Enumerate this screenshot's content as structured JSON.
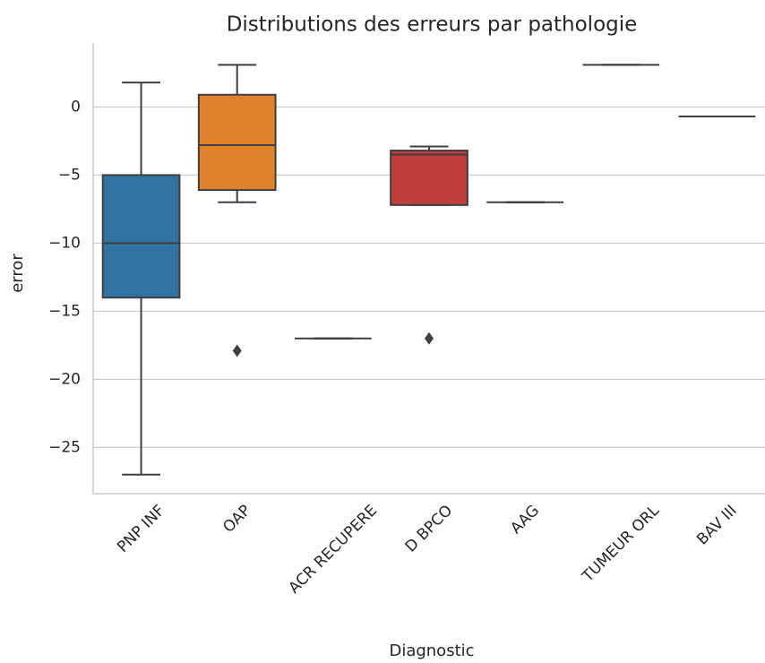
{
  "chart_data": {
    "type": "box",
    "title": "Distributions des erreurs par pathologie",
    "x_label": "Diagnostic",
    "y_label": "error",
    "categories": [
      "PNP INF",
      "OAP",
      "ACR RECUPERE",
      "D BPCO",
      "AAG",
      "TUMEUR ORL",
      "BAV III"
    ],
    "colors": [
      "#3274a1",
      "#e1812c",
      "#3a923a",
      "#c03d3e",
      "#9372b2",
      "#845b53",
      "#d684bd"
    ],
    "boxes": [
      {
        "whislo": -27,
        "q1": -14,
        "med": -10,
        "q3": -5,
        "whishi": 1.8,
        "fliers": []
      },
      {
        "whislo": -7,
        "q1": -6.1,
        "med": -2.8,
        "q3": 0.9,
        "whishi": 3.1,
        "fliers": [
          -17.9
        ]
      },
      {
        "whislo": -17,
        "q1": -17,
        "med": -17,
        "q3": -17,
        "whishi": -17,
        "fliers": []
      },
      {
        "whislo": -7.2,
        "q1": -7.2,
        "med": -3.5,
        "q3": -3.2,
        "whishi": -2.9,
        "fliers": [
          -17
        ]
      },
      {
        "whislo": -7,
        "q1": -7,
        "med": -7,
        "q3": -7,
        "whishi": -7,
        "fliers": []
      },
      {
        "whislo": 3.1,
        "q1": 3.1,
        "med": 3.1,
        "q3": 3.1,
        "whishi": 3.1,
        "fliers": []
      },
      {
        "whislo": -0.7,
        "q1": -0.7,
        "med": -0.7,
        "q3": -0.7,
        "whishi": -0.7,
        "fliers": []
      }
    ],
    "ylim": [
      -28.4,
      4.7
    ],
    "yticks": [
      {
        "value": -25,
        "label": "−25"
      },
      {
        "value": -20,
        "label": "−20"
      },
      {
        "value": -15,
        "label": "−15"
      },
      {
        "value": -10,
        "label": "−10"
      },
      {
        "value": -5,
        "label": "−5"
      },
      0
    ],
    "grid": true
  }
}
